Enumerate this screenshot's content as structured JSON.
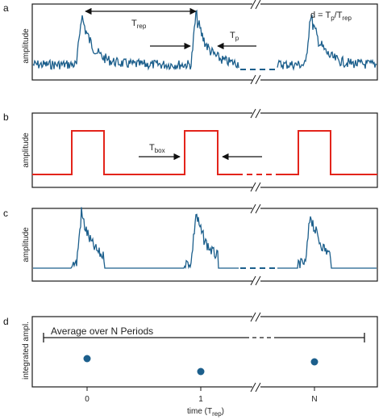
{
  "colors": {
    "signal": "#1c5f8c",
    "box": "#e3241b",
    "frame": "#1a1a1a",
    "arrow": "#111111"
  },
  "panels": {
    "a": {
      "label": "a",
      "ylabel": "amplitude",
      "t_rep_main": "T",
      "t_rep_sub": "rep",
      "t_p_main": "T",
      "t_p_sub": "p",
      "duty_d": "d = T",
      "duty_p": "p",
      "duty_slash": "/T",
      "duty_rep": "rep"
    },
    "b": {
      "label": "b",
      "ylabel": "amplitude",
      "t_box_main": "T",
      "t_box_sub": "box"
    },
    "c": {
      "label": "c",
      "ylabel": "amplitude"
    },
    "d": {
      "label": "d",
      "ylabel": "integrated ampl.",
      "bracket_text": "Average over N Periods",
      "xticks": [
        "0",
        "1",
        "N"
      ],
      "xlabel_main": "time (T",
      "xlabel_sub": "rep",
      "xlabel_end": ")"
    }
  },
  "chart_data": {
    "type": "scatter",
    "categories": [
      "0",
      "1",
      "N"
    ],
    "values": [
      0.55,
      0.15,
      0.45
    ],
    "xlabel": "time (T_rep)",
    "ylabel": "integrated ampl."
  }
}
